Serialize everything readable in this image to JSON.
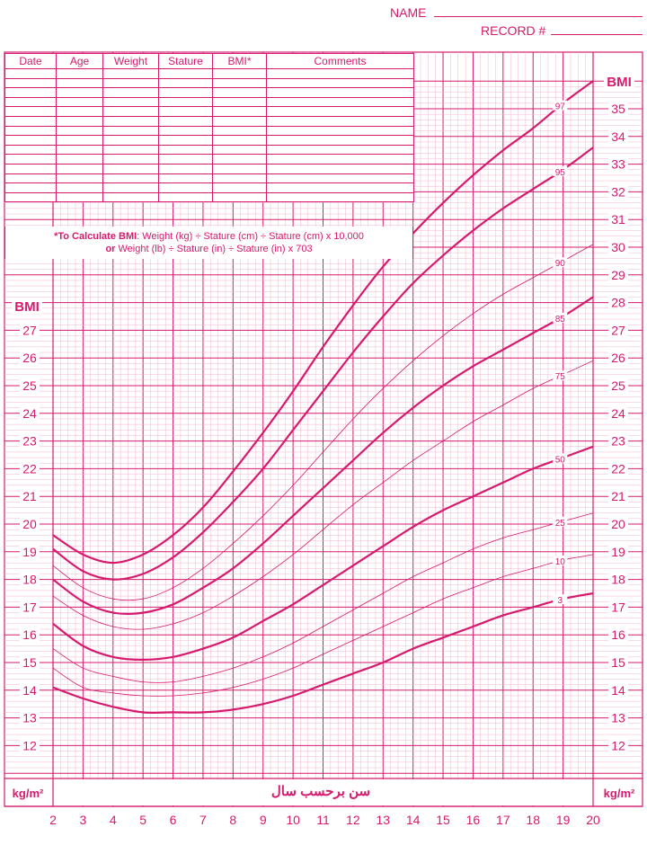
{
  "header": {
    "name_label": "NAME",
    "record_label": "RECORD #"
  },
  "record_table": {
    "columns": [
      "Date",
      "Age",
      "Weight",
      "Stature",
      "BMI*",
      "Comments"
    ],
    "empty_rows": 14
  },
  "formula": {
    "line1_bold": "*To Calculate BMI",
    "line1_rest": ": Weight (kg) ÷ Stature (cm) ÷ Stature (cm) x 10,000",
    "line2_bold": "or",
    "line2_rest": " Weight (lb) ÷ Stature (in) ÷ Stature (in) x 703"
  },
  "labels": {
    "bmi_left": "BMI",
    "bmi_right": "BMI",
    "unit_left": "kg/m²",
    "unit_right": "kg/m²",
    "x_title": "سن برحسب سال"
  },
  "colors": {
    "accent": "#d61a6e",
    "grid_minor": "#f3b4cf"
  },
  "chart_data": {
    "type": "line",
    "xlabel": "سن برحسب سال",
    "ylabel": "BMI",
    "xlim": [
      2,
      20
    ],
    "ylim": [
      11,
      36
    ],
    "x_ticks": [
      2,
      3,
      4,
      5,
      6,
      7,
      8,
      9,
      10,
      11,
      12,
      13,
      14,
      15,
      16,
      17,
      18,
      19,
      20
    ],
    "y_ticks_left": [
      12,
      13,
      14,
      15,
      16,
      17,
      18,
      19,
      20,
      21,
      22,
      23,
      24,
      25,
      26,
      27
    ],
    "y_ticks_right": [
      12,
      13,
      14,
      15,
      16,
      17,
      18,
      19,
      20,
      21,
      22,
      23,
      24,
      25,
      26,
      27,
      28,
      29,
      30,
      31,
      32,
      33,
      34,
      35
    ],
    "grid": true,
    "series": [
      {
        "name": "97",
        "bold": true,
        "x": [
          2,
          3,
          4,
          5,
          6,
          7,
          8,
          9,
          10,
          11,
          12,
          13,
          14,
          15,
          16,
          17,
          18,
          19,
          20
        ],
        "values": [
          19.6,
          18.9,
          18.6,
          18.9,
          19.6,
          20.6,
          21.9,
          23.3,
          24.8,
          26.4,
          27.9,
          29.3,
          30.5,
          31.6,
          32.6,
          33.5,
          34.3,
          35.2,
          36.0
        ]
      },
      {
        "name": "95",
        "bold": true,
        "x": [
          2,
          3,
          4,
          5,
          6,
          7,
          8,
          9,
          10,
          11,
          12,
          13,
          14,
          15,
          16,
          17,
          18,
          19,
          20
        ],
        "values": [
          19.1,
          18.3,
          18.0,
          18.2,
          18.8,
          19.7,
          20.8,
          22.0,
          23.4,
          24.8,
          26.2,
          27.5,
          28.7,
          29.7,
          30.6,
          31.4,
          32.1,
          32.8,
          33.6
        ]
      },
      {
        "name": "90",
        "bold": false,
        "x": [
          2,
          3,
          4,
          5,
          6,
          7,
          8,
          9,
          10,
          11,
          12,
          13,
          14,
          15,
          16,
          17,
          18,
          19,
          20
        ],
        "values": [
          18.5,
          17.7,
          17.3,
          17.3,
          17.7,
          18.4,
          19.3,
          20.3,
          21.4,
          22.6,
          23.8,
          24.9,
          25.9,
          26.8,
          27.6,
          28.3,
          28.9,
          29.5,
          30.1
        ]
      },
      {
        "name": "85",
        "bold": true,
        "x": [
          2,
          3,
          4,
          5,
          6,
          7,
          8,
          9,
          10,
          11,
          12,
          13,
          14,
          15,
          16,
          17,
          18,
          19,
          20
        ],
        "values": [
          18.0,
          17.2,
          16.8,
          16.8,
          17.1,
          17.7,
          18.4,
          19.3,
          20.3,
          21.3,
          22.3,
          23.3,
          24.2,
          25.0,
          25.7,
          26.3,
          26.9,
          27.5,
          28.2
        ]
      },
      {
        "name": "75",
        "bold": false,
        "x": [
          2,
          3,
          4,
          5,
          6,
          7,
          8,
          9,
          10,
          11,
          12,
          13,
          14,
          15,
          16,
          17,
          18,
          19,
          20
        ],
        "values": [
          17.4,
          16.7,
          16.3,
          16.2,
          16.4,
          16.8,
          17.4,
          18.1,
          18.9,
          19.8,
          20.7,
          21.5,
          22.3,
          23.0,
          23.7,
          24.3,
          24.9,
          25.4,
          25.9
        ]
      },
      {
        "name": "50",
        "bold": true,
        "x": [
          2,
          3,
          4,
          5,
          6,
          7,
          8,
          9,
          10,
          11,
          12,
          13,
          14,
          15,
          16,
          17,
          18,
          19,
          20
        ],
        "values": [
          16.4,
          15.6,
          15.2,
          15.1,
          15.2,
          15.5,
          15.9,
          16.5,
          17.1,
          17.8,
          18.5,
          19.2,
          19.9,
          20.5,
          21.0,
          21.5,
          22.0,
          22.4,
          22.8
        ]
      },
      {
        "name": "25",
        "bold": false,
        "x": [
          2,
          3,
          4,
          5,
          6,
          7,
          8,
          9,
          10,
          11,
          12,
          13,
          14,
          15,
          16,
          17,
          18,
          19,
          20
        ],
        "values": [
          15.5,
          14.8,
          14.5,
          14.3,
          14.3,
          14.5,
          14.8,
          15.2,
          15.7,
          16.3,
          16.9,
          17.5,
          18.1,
          18.6,
          19.1,
          19.5,
          19.8,
          20.1,
          20.4
        ]
      },
      {
        "name": "10",
        "bold": false,
        "x": [
          2,
          3,
          4,
          5,
          6,
          7,
          8,
          9,
          10,
          11,
          12,
          13,
          14,
          15,
          16,
          17,
          18,
          19,
          20
        ],
        "values": [
          14.8,
          14.1,
          13.9,
          13.8,
          13.8,
          13.9,
          14.1,
          14.4,
          14.8,
          15.3,
          15.8,
          16.3,
          16.8,
          17.3,
          17.7,
          18.1,
          18.4,
          18.7,
          18.9
        ]
      },
      {
        "name": "3",
        "bold": true,
        "x": [
          2,
          3,
          4,
          5,
          6,
          7,
          8,
          9,
          10,
          11,
          12,
          13,
          14,
          15,
          16,
          17,
          18,
          19,
          20
        ],
        "values": [
          14.1,
          13.7,
          13.4,
          13.2,
          13.2,
          13.2,
          13.3,
          13.5,
          13.8,
          14.2,
          14.6,
          15.0,
          15.5,
          15.9,
          16.3,
          16.7,
          17.0,
          17.3,
          17.5
        ]
      }
    ]
  }
}
